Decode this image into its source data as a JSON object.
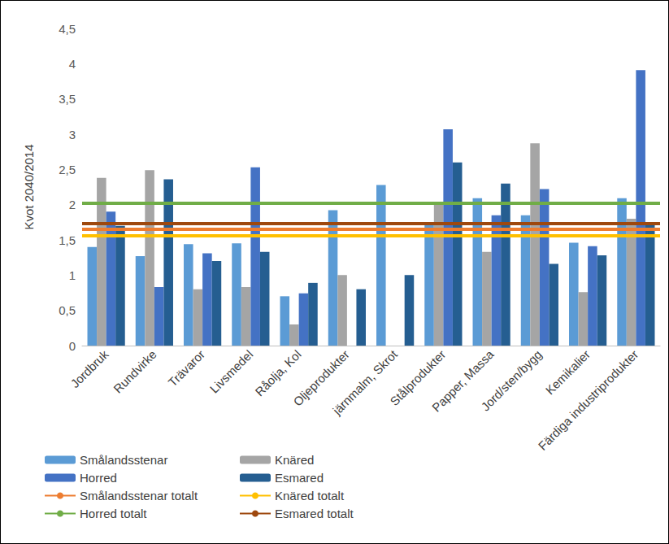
{
  "chart_data": {
    "type": "bar",
    "y_label": "Kvot 2040/2014",
    "categories": [
      "Jordbruk",
      "Rundvirke",
      "Trävaror",
      "Livsmedel",
      "Råolja, Kol",
      "Oljeprodukter",
      "järnmalm, Skrot",
      "Stålprodukter",
      "Papper, Massa",
      "Jord/sten/bygg",
      "Kemikalier",
      "Färdiga industriprodukter"
    ],
    "series": [
      {
        "name": "Smålandsstenar",
        "type": "bar",
        "color": "#5b9bd5",
        "values": [
          1.4,
          1.27,
          1.44,
          1.45,
          0.7,
          1.92,
          2.28,
          1.75,
          2.09,
          1.85,
          1.46,
          2.09
        ]
      },
      {
        "name": "Knäred",
        "type": "bar",
        "color": "#a5a5a5",
        "values": [
          2.38,
          2.49,
          0.8,
          0.83,
          0.3,
          1.0,
          null,
          2.0,
          1.33,
          2.87,
          0.76,
          1.8
        ]
      },
      {
        "name": "Horred",
        "type": "bar",
        "color": "#4472c4",
        "values": [
          1.9,
          0.83,
          1.31,
          2.53,
          0.74,
          null,
          null,
          3.07,
          1.85,
          2.22,
          1.41,
          3.91
        ]
      },
      {
        "name": "Esmared",
        "type": "bar",
        "color": "#255e91",
        "values": [
          1.7,
          2.36,
          1.2,
          1.33,
          0.89,
          0.8,
          1.0,
          2.6,
          2.3,
          1.16,
          1.28,
          1.75
        ]
      },
      {
        "name": "Smålandsstenar totalt",
        "type": "line",
        "color": "#ed7d31",
        "value": 1.65
      },
      {
        "name": "Knäred totalt",
        "type": "line",
        "color": "#ffc000",
        "value": 1.56
      },
      {
        "name": "Horred totalt",
        "type": "line",
        "color": "#70ad47",
        "value": 2.02
      },
      {
        "name": "Esmared totalt",
        "type": "line",
        "color": "#9e480e",
        "value": 1.73
      }
    ],
    "ylim": [
      0,
      4.5
    ],
    "yticks": [
      0,
      {
        "value": 0.5,
        "label": "0,5"
      },
      1,
      {
        "value": 1.5,
        "label": "1,5"
      },
      2,
      {
        "value": 2.5,
        "label": "2,5"
      },
      3,
      {
        "value": 3.5,
        "label": "3,5"
      },
      4,
      {
        "value": 4.5,
        "label": "4,5"
      }
    ],
    "grid": false,
    "legend": "bottom"
  }
}
